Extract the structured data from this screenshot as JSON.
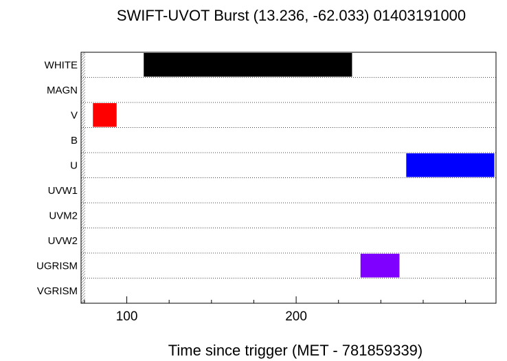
{
  "chart_data": {
    "type": "bar",
    "title": "SWIFT-UVOT Burst (13.236, -62.033) 01403191000",
    "xlabel": "Time since trigger (MET - 781859339)",
    "ylabel": "",
    "categories": [
      "WHITE",
      "MAGN",
      "V",
      "B",
      "U",
      "UVW1",
      "UVM2",
      "UVW2",
      "UGRISM",
      "VGRISM"
    ],
    "xlim": [
      73,
      318
    ],
    "x_ticks": [
      100,
      200
    ],
    "x_minor_ticks": [
      75,
      125,
      150,
      175,
      225,
      250,
      275,
      300
    ],
    "grid": "horizontal dotted",
    "bars": [
      {
        "filter": "WHITE",
        "x_start": 110,
        "x_end": 233,
        "color": "#000000"
      },
      {
        "filter": "V",
        "x_start": 80,
        "x_end": 94,
        "color": "#ff0000"
      },
      {
        "filter": "U",
        "x_start": 265,
        "x_end": 317,
        "color": "#0000ff"
      },
      {
        "filter": "UGRISM",
        "x_start": 238,
        "x_end": 261,
        "color": "#8000ff"
      }
    ]
  }
}
